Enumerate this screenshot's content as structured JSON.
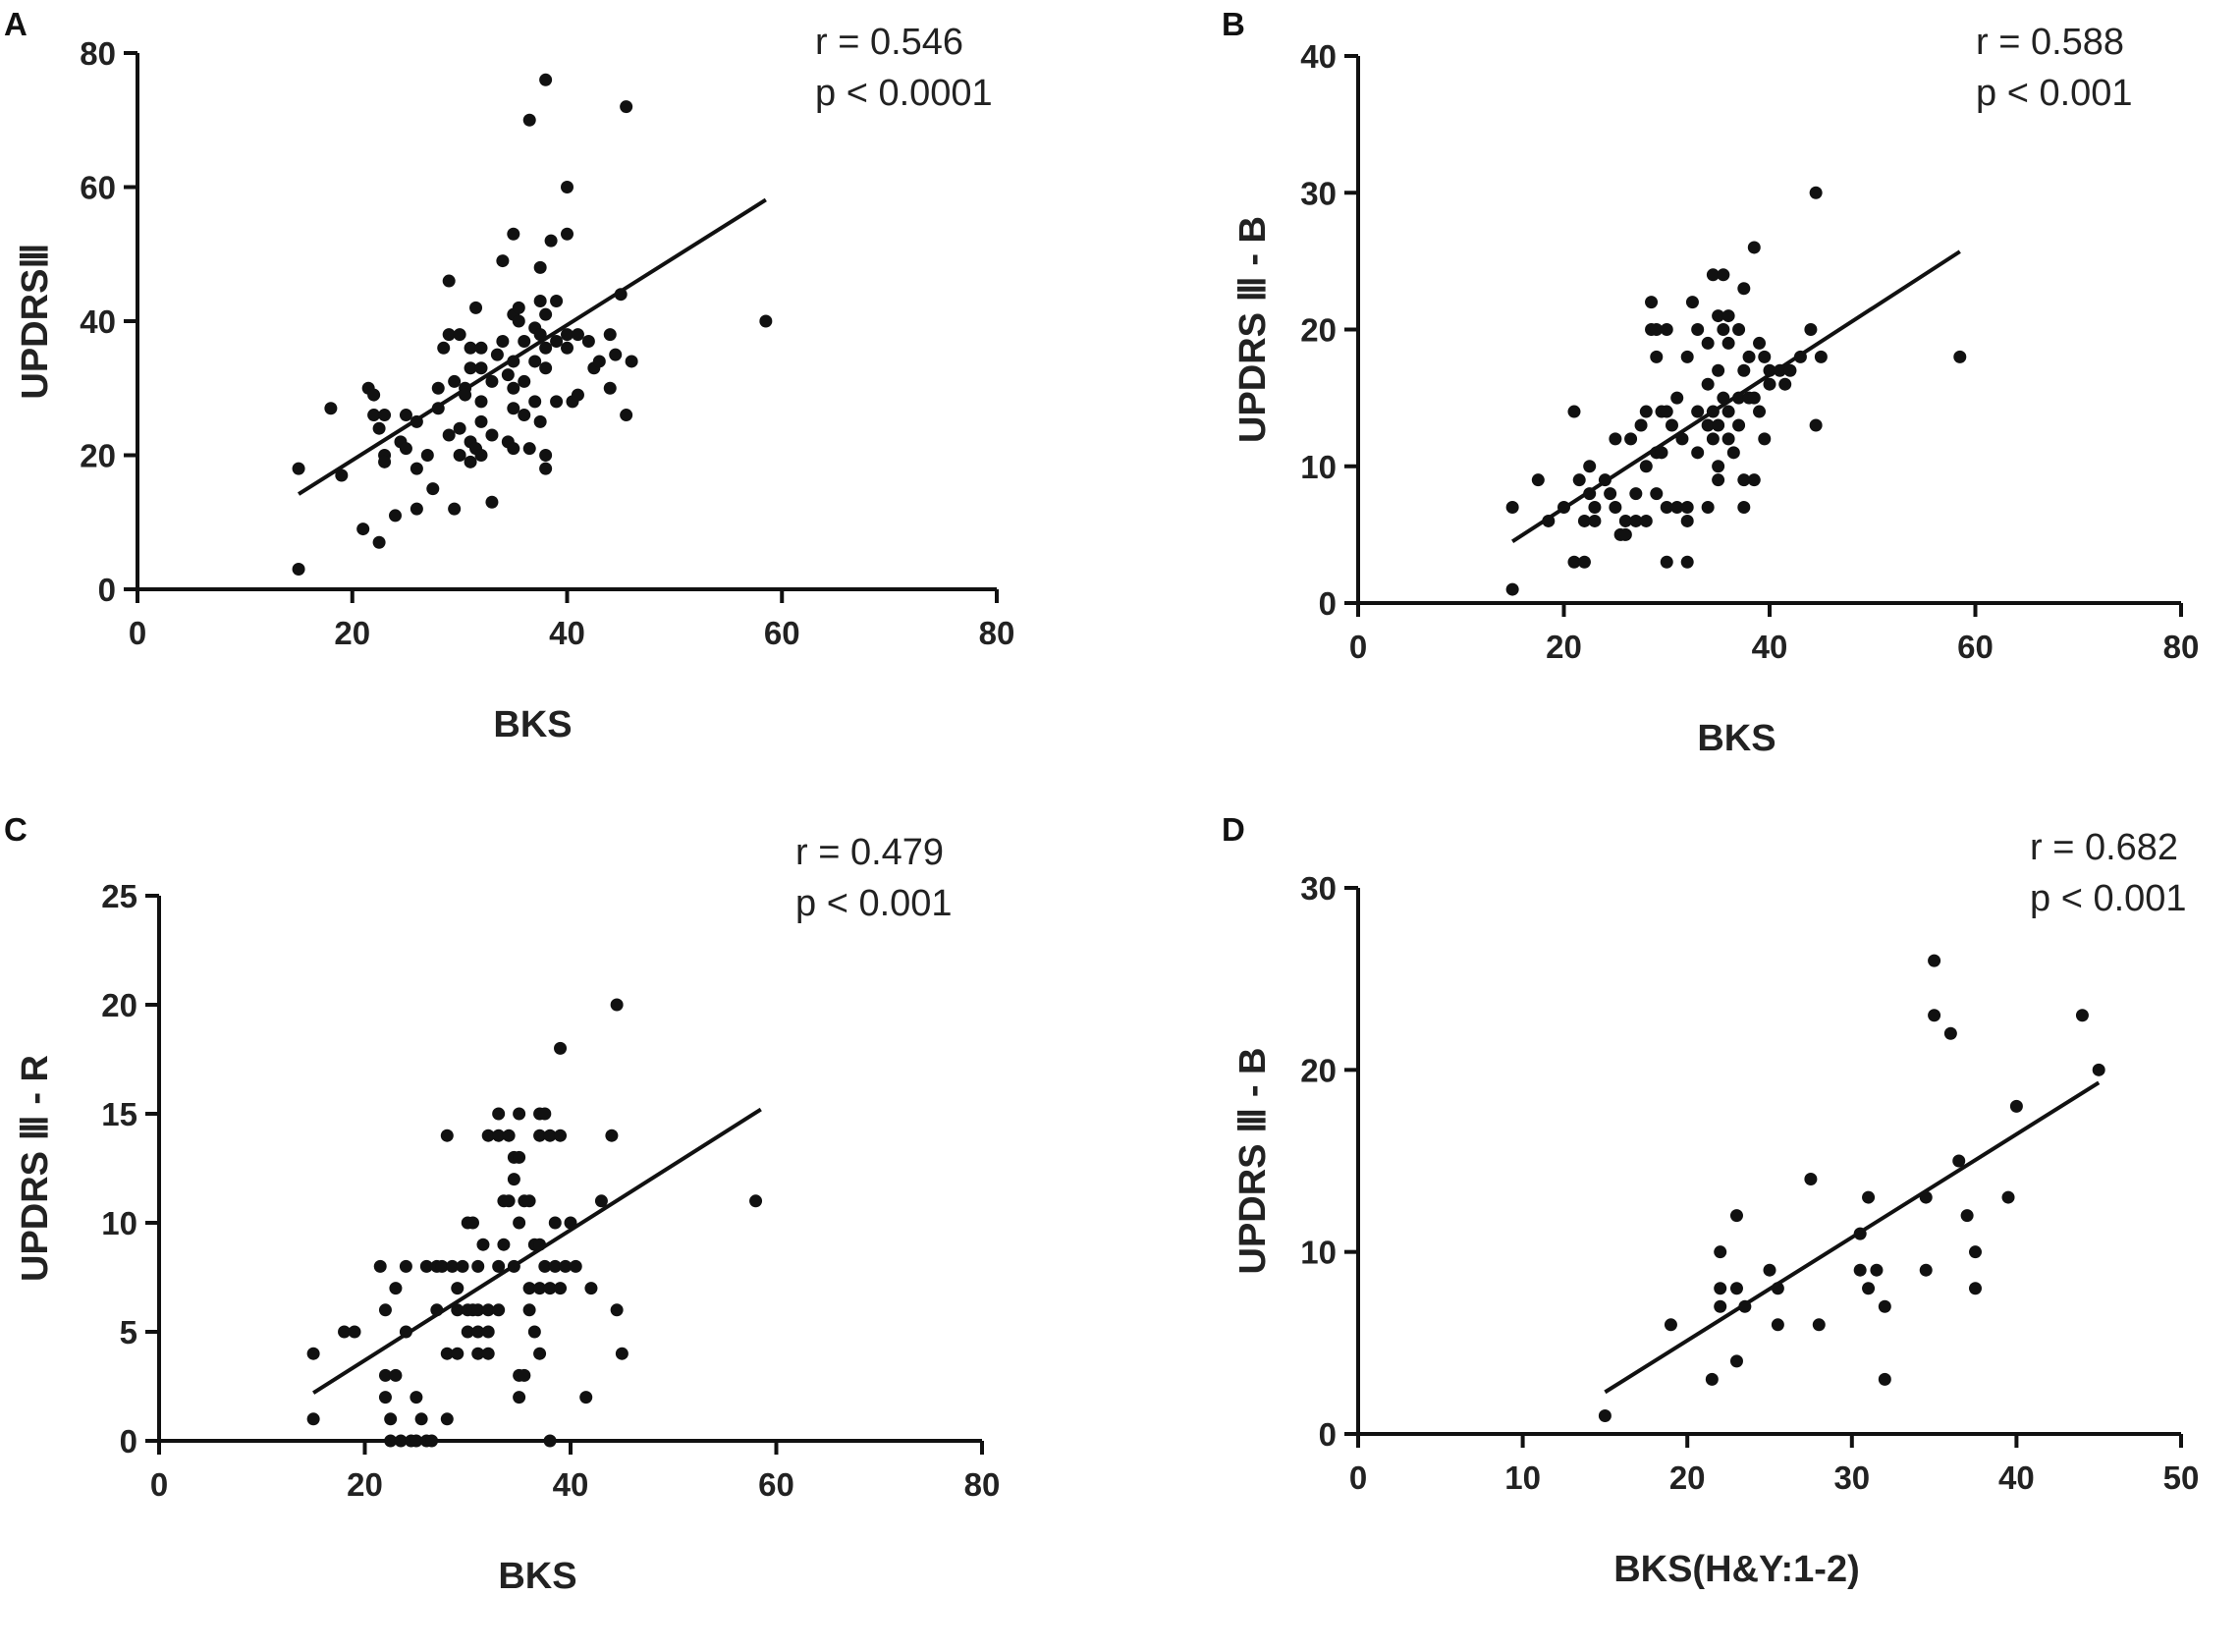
{
  "chart_data": [
    {
      "type": "scatter",
      "panel": "A",
      "xlabel": "BKS",
      "ylabel": "UPDRSⅢ",
      "xlim": [
        0,
        80
      ],
      "ylim": [
        0,
        80
      ],
      "xticks": [
        0,
        20,
        40,
        60,
        80
      ],
      "yticks": [
        0,
        20,
        40,
        60,
        80
      ],
      "stats": {
        "r": "r = 0.546",
        "p": "p < 0.0001"
      },
      "fit": {
        "x": [
          15,
          58.5
        ],
        "y": [
          14.2,
          58.1
        ]
      },
      "points": [
        [
          15,
          18
        ],
        [
          15,
          3
        ],
        [
          18,
          27
        ],
        [
          19,
          17
        ],
        [
          21,
          9
        ],
        [
          21.5,
          30
        ],
        [
          22,
          29
        ],
        [
          22,
          26
        ],
        [
          22.5,
          24
        ],
        [
          22.5,
          7
        ],
        [
          23,
          26
        ],
        [
          23,
          20
        ],
        [
          23,
          19
        ],
        [
          24,
          11
        ],
        [
          24.5,
          22
        ],
        [
          25,
          26
        ],
        [
          25,
          21
        ],
        [
          26,
          25
        ],
        [
          26,
          12
        ],
        [
          26,
          18
        ],
        [
          27,
          20
        ],
        [
          27.5,
          15
        ],
        [
          28,
          30
        ],
        [
          28,
          27
        ],
        [
          28.5,
          36
        ],
        [
          29,
          23
        ],
        [
          29,
          38
        ],
        [
          29,
          46
        ],
        [
          29.5,
          31
        ],
        [
          29.5,
          12
        ],
        [
          30,
          38
        ],
        [
          30,
          24
        ],
        [
          30,
          20
        ],
        [
          30.5,
          30
        ],
        [
          30.5,
          29
        ],
        [
          31,
          36
        ],
        [
          31,
          33
        ],
        [
          31,
          22
        ],
        [
          31,
          19
        ],
        [
          31.5,
          42
        ],
        [
          31.5,
          21
        ],
        [
          32,
          36
        ],
        [
          32,
          33
        ],
        [
          32,
          28
        ],
        [
          32,
          25
        ],
        [
          32,
          20
        ],
        [
          33,
          31
        ],
        [
          33,
          23
        ],
        [
          33,
          13
        ],
        [
          33.5,
          35
        ],
        [
          34,
          49
        ],
        [
          34,
          37
        ],
        [
          34.5,
          32
        ],
        [
          34.5,
          22
        ],
        [
          35,
          41
        ],
        [
          35,
          34
        ],
        [
          35,
          30
        ],
        [
          35,
          27
        ],
        [
          35,
          21
        ],
        [
          35,
          53
        ],
        [
          35.5,
          40
        ],
        [
          35.5,
          42
        ],
        [
          36,
          37
        ],
        [
          36,
          31
        ],
        [
          36,
          26
        ],
        [
          36.5,
          70
        ],
        [
          36.5,
          21
        ],
        [
          37,
          39
        ],
        [
          37,
          34
        ],
        [
          37,
          28
        ],
        [
          37.5,
          48
        ],
        [
          37.5,
          43
        ],
        [
          37.5,
          38
        ],
        [
          37.5,
          25
        ],
        [
          38,
          76
        ],
        [
          38,
          41
        ],
        [
          38,
          36
        ],
        [
          38,
          33
        ],
        [
          38,
          20
        ],
        [
          38,
          18
        ],
        [
          38.5,
          52
        ],
        [
          39,
          43
        ],
        [
          39,
          37
        ],
        [
          39,
          28
        ],
        [
          40,
          60
        ],
        [
          40,
          53
        ],
        [
          40,
          38
        ],
        [
          40,
          36
        ],
        [
          40.5,
          28
        ],
        [
          41,
          38
        ],
        [
          41,
          29
        ],
        [
          42,
          37
        ],
        [
          42.5,
          33
        ],
        [
          43,
          34
        ],
        [
          44,
          38
        ],
        [
          44,
          30
        ],
        [
          44.5,
          35
        ],
        [
          45,
          44
        ],
        [
          45.5,
          26
        ],
        [
          45.5,
          72
        ],
        [
          46,
          34
        ],
        [
          58.5,
          40
        ]
      ]
    },
    {
      "type": "scatter",
      "panel": "B",
      "xlabel": "BKS",
      "ylabel": "UPDRS Ⅲ - B",
      "xlim": [
        0,
        80
      ],
      "ylim": [
        0,
        40
      ],
      "xticks": [
        0,
        20,
        40,
        60,
        80
      ],
      "yticks": [
        0,
        10,
        20,
        30,
        40
      ],
      "stats": {
        "r": "r = 0.588",
        "p": "p < 0.001"
      },
      "fit": {
        "x": [
          15,
          58.5
        ],
        "y": [
          4.5,
          25.7
        ]
      },
      "points": [
        [
          15,
          7
        ],
        [
          15,
          1
        ],
        [
          17.5,
          9
        ],
        [
          18.5,
          6
        ],
        [
          20,
          7
        ],
        [
          21,
          14
        ],
        [
          21,
          3
        ],
        [
          21.5,
          9
        ],
        [
          22,
          6
        ],
        [
          22,
          3
        ],
        [
          22.5,
          8
        ],
        [
          22.5,
          10
        ],
        [
          23,
          7
        ],
        [
          23,
          6
        ],
        [
          24,
          9
        ],
        [
          24.5,
          8
        ],
        [
          25,
          12
        ],
        [
          25,
          7
        ],
        [
          25.5,
          5
        ],
        [
          26,
          6
        ],
        [
          26,
          5
        ],
        [
          26.5,
          12
        ],
        [
          27,
          8
        ],
        [
          27,
          6
        ],
        [
          27.5,
          13
        ],
        [
          28,
          14
        ],
        [
          28,
          10
        ],
        [
          28,
          6
        ],
        [
          28.5,
          22
        ],
        [
          28.5,
          20
        ],
        [
          29,
          20
        ],
        [
          29,
          18
        ],
        [
          29,
          11
        ],
        [
          29,
          8
        ],
        [
          29.5,
          14
        ],
        [
          29.5,
          11
        ],
        [
          30,
          20
        ],
        [
          30,
          14
        ],
        [
          30,
          7
        ],
        [
          30,
          3
        ],
        [
          30.5,
          13
        ],
        [
          31,
          15
        ],
        [
          31,
          7
        ],
        [
          31.5,
          12
        ],
        [
          32,
          18
        ],
        [
          32,
          7
        ],
        [
          32,
          6
        ],
        [
          32,
          3
        ],
        [
          32.5,
          22
        ],
        [
          33,
          20
        ],
        [
          33,
          14
        ],
        [
          33,
          11
        ],
        [
          34,
          19
        ],
        [
          34,
          16
        ],
        [
          34,
          13
        ],
        [
          34,
          7
        ],
        [
          34.5,
          24
        ],
        [
          34.5,
          14
        ],
        [
          34.5,
          12
        ],
        [
          35,
          21
        ],
        [
          35,
          17
        ],
        [
          35,
          13
        ],
        [
          35,
          10
        ],
        [
          35,
          9
        ],
        [
          35.5,
          24
        ],
        [
          35.5,
          20
        ],
        [
          35.5,
          15
        ],
        [
          36,
          21
        ],
        [
          36,
          19
        ],
        [
          36,
          14
        ],
        [
          36,
          12
        ],
        [
          36.5,
          11
        ],
        [
          37,
          20
        ],
        [
          37,
          15
        ],
        [
          37,
          13
        ],
        [
          37.5,
          23
        ],
        [
          37.5,
          17
        ],
        [
          37.5,
          9
        ],
        [
          37.5,
          7
        ],
        [
          38,
          18
        ],
        [
          38,
          15
        ],
        [
          38.5,
          26
        ],
        [
          38.5,
          15
        ],
        [
          38.5,
          9
        ],
        [
          39,
          19
        ],
        [
          39,
          14
        ],
        [
          39.5,
          18
        ],
        [
          39.5,
          12
        ],
        [
          40,
          17
        ],
        [
          40,
          16
        ],
        [
          41,
          17
        ],
        [
          41.5,
          16
        ],
        [
          42,
          17
        ],
        [
          43,
          18
        ],
        [
          44,
          20
        ],
        [
          44.5,
          13
        ],
        [
          45,
          18
        ],
        [
          44.5,
          30
        ],
        [
          58.5,
          18
        ]
      ]
    },
    {
      "type": "scatter",
      "panel": "C",
      "xlabel": "BKS",
      "ylabel": "UPDRS Ⅲ - R",
      "xlim": [
        0,
        80
      ],
      "ylim": [
        0,
        25
      ],
      "xticks": [
        0,
        20,
        40,
        60,
        80
      ],
      "yticks": [
        0,
        5,
        10,
        15,
        20,
        25
      ],
      "stats": {
        "r": "r = 0.479",
        "p": "p < 0.001"
      },
      "fit": {
        "x": [
          15,
          58.5
        ],
        "y": [
          2.2,
          15.2
        ]
      },
      "points": [
        [
          15,
          4
        ],
        [
          15,
          1
        ],
        [
          18,
          5
        ],
        [
          19,
          5
        ],
        [
          21.5,
          8
        ],
        [
          22,
          3
        ],
        [
          22,
          2
        ],
        [
          22,
          6
        ],
        [
          22.5,
          0
        ],
        [
          22.5,
          1
        ],
        [
          23,
          3
        ],
        [
          23,
          7
        ],
        [
          23.5,
          0
        ],
        [
          24,
          8
        ],
        [
          24,
          5
        ],
        [
          24.5,
          0
        ],
        [
          25,
          2
        ],
        [
          25,
          0
        ],
        [
          25.5,
          1
        ],
        [
          26,
          8
        ],
        [
          26,
          0
        ],
        [
          26.5,
          0
        ],
        [
          27,
          8
        ],
        [
          27,
          6
        ],
        [
          27.5,
          8
        ],
        [
          28,
          14
        ],
        [
          28,
          4
        ],
        [
          28,
          1
        ],
        [
          28.5,
          8
        ],
        [
          29,
          7
        ],
        [
          29,
          6
        ],
        [
          29,
          4
        ],
        [
          29.5,
          8
        ],
        [
          30,
          10
        ],
        [
          30,
          6
        ],
        [
          30,
          5
        ],
        [
          30.5,
          10
        ],
        [
          30.5,
          6
        ],
        [
          31,
          8
        ],
        [
          31,
          6
        ],
        [
          31,
          5
        ],
        [
          31,
          4
        ],
        [
          31.5,
          9
        ],
        [
          32,
          14
        ],
        [
          32,
          6
        ],
        [
          32,
          5
        ],
        [
          32,
          4
        ],
        [
          33,
          15
        ],
        [
          33,
          14
        ],
        [
          33,
          8
        ],
        [
          33,
          6
        ],
        [
          33.5,
          11
        ],
        [
          33.5,
          9
        ],
        [
          34,
          14
        ],
        [
          34,
          11
        ],
        [
          34.5,
          13
        ],
        [
          34.5,
          12
        ],
        [
          34.5,
          8
        ],
        [
          35,
          15
        ],
        [
          35,
          13
        ],
        [
          35,
          10
        ],
        [
          35,
          3
        ],
        [
          35,
          2
        ],
        [
          35.5,
          11
        ],
        [
          35.5,
          3
        ],
        [
          36,
          11
        ],
        [
          36,
          7
        ],
        [
          36,
          6
        ],
        [
          36.5,
          9
        ],
        [
          36.5,
          5
        ],
        [
          37,
          14
        ],
        [
          37,
          9
        ],
        [
          37,
          7
        ],
        [
          37,
          4
        ],
        [
          37,
          15
        ],
        [
          37.5,
          15
        ],
        [
          37.5,
          8
        ],
        [
          38,
          14
        ],
        [
          38,
          7
        ],
        [
          38,
          0
        ],
        [
          38.5,
          10
        ],
        [
          38.5,
          8
        ],
        [
          39,
          18
        ],
        [
          39,
          14
        ],
        [
          39,
          7
        ],
        [
          39.5,
          8
        ],
        [
          40,
          10
        ],
        [
          40.5,
          8
        ],
        [
          41.5,
          2
        ],
        [
          42,
          7
        ],
        [
          43,
          11
        ],
        [
          44,
          14
        ],
        [
          44.5,
          6
        ],
        [
          44.5,
          20
        ],
        [
          45,
          4
        ],
        [
          58,
          11
        ]
      ]
    },
    {
      "type": "scatter",
      "panel": "D",
      "xlabel": "BKS(H&Y:1-2)",
      "ylabel": "UPDRS Ⅲ - B",
      "xlim": [
        0,
        50
      ],
      "ylim": [
        0,
        30
      ],
      "xticks": [
        0,
        10,
        20,
        30,
        40,
        50
      ],
      "yticks": [
        0,
        10,
        20,
        30
      ],
      "stats": {
        "r": "r = 0.682",
        "p": "p < 0.001"
      },
      "fit": {
        "x": [
          15,
          45
        ],
        "y": [
          2.3,
          19.3
        ]
      },
      "points": [
        [
          15,
          1
        ],
        [
          19,
          6
        ],
        [
          21.5,
          3
        ],
        [
          22,
          10
        ],
        [
          22,
          8
        ],
        [
          22,
          7
        ],
        [
          23,
          12
        ],
        [
          23,
          8
        ],
        [
          23,
          4
        ],
        [
          23.5,
          7
        ],
        [
          25,
          9
        ],
        [
          25.5,
          8
        ],
        [
          25.5,
          6
        ],
        [
          27.5,
          14
        ],
        [
          28,
          6
        ],
        [
          30.5,
          9
        ],
        [
          30.5,
          11
        ],
        [
          31,
          13
        ],
        [
          31,
          8
        ],
        [
          31.5,
          9
        ],
        [
          32,
          7
        ],
        [
          32,
          3
        ],
        [
          34.5,
          13
        ],
        [
          34.5,
          9
        ],
        [
          35,
          26
        ],
        [
          35,
          23
        ],
        [
          36,
          22
        ],
        [
          36.5,
          15
        ],
        [
          37,
          12
        ],
        [
          37.5,
          10
        ],
        [
          37.5,
          8
        ],
        [
          39.5,
          13
        ],
        [
          40,
          18
        ],
        [
          44,
          23
        ],
        [
          45,
          20
        ]
      ]
    }
  ],
  "panel_letters": [
    "A",
    "B",
    "C",
    "D"
  ]
}
